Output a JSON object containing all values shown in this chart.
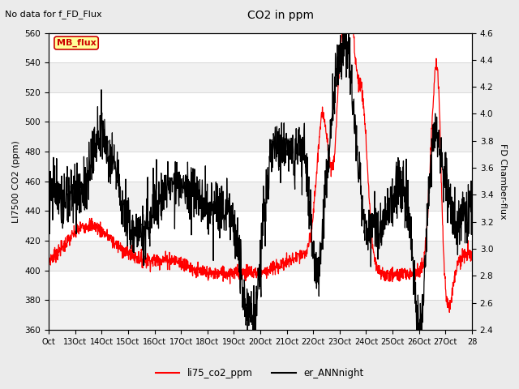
{
  "title": "CO2 in ppm",
  "top_left_text": "No data for f_FD_Flux",
  "ylabel_left": "LI7500 CO2 (ppm)",
  "ylabel_right": "FD Chamber-flux",
  "ylim_left": [
    360,
    560
  ],
  "ylim_right": [
    2.4,
    4.6
  ],
  "yticks_left": [
    360,
    380,
    400,
    420,
    440,
    460,
    480,
    500,
    520,
    540,
    560
  ],
  "yticks_right": [
    2.4,
    2.6,
    2.8,
    3.0,
    3.2,
    3.4,
    3.6,
    3.8,
    4.0,
    4.2,
    4.4,
    4.6
  ],
  "xtick_labels": [
    "Oct",
    "13Oct",
    "14Oct",
    "15Oct",
    "16Oct",
    "17Oct",
    "18Oct",
    "19Oct",
    "20Oct",
    "21Oct",
    "22Oct",
    "23Oct",
    "24Oct",
    "25Oct",
    "26Oct",
    "27Oct",
    "28"
  ],
  "legend_labels": [
    "li75_co2_ppm",
    "er_ANNnight"
  ],
  "line_red_color": "#ff0000",
  "line_black_color": "#000000",
  "bg_color": "#ebebeb",
  "plot_bg_color": "#ffffff",
  "annotation_box_text": "MB_flux",
  "annotation_box_color": "#ffff99",
  "annotation_box_border": "#cc0000"
}
